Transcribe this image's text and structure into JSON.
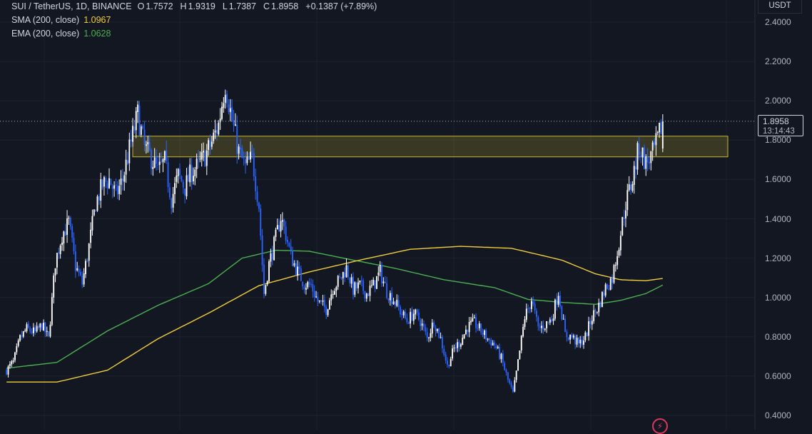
{
  "header": {
    "symbol": "SUI / TetherUS, 1D, BINANCE",
    "open_label": "O",
    "open": "1.7572",
    "high_label": "H",
    "high": "1.9319",
    "low_label": "L",
    "low": "1.7387",
    "close_label": "C",
    "close": "1.8958",
    "change": "+0.1387 (+7.89%)",
    "sma_label": "SMA (200, close)",
    "sma_value": "1.0967",
    "ema_label": "EMA (200, close)",
    "ema_value": "1.0628"
  },
  "price_axis": {
    "currency": "USDT",
    "current_price": "1.8958",
    "countdown": "13:14:43"
  },
  "colors": {
    "background": "#131722",
    "up_candle": "#ffffff",
    "down_candle": "#2962ff",
    "sma": "#f0cd3c",
    "ema": "#4caf50",
    "zone_fill": "rgba(120,110,40,0.38)",
    "zone_border": "#c9b834",
    "grid": "#1e2230"
  },
  "icons": {
    "bottom_right": "lightning-bolt-icon"
  },
  "chart_data": {
    "type": "candlestick",
    "title": "SUI / TetherUS, 1D, BINANCE",
    "ylim": [
      0.4,
      2.4
    ],
    "y_ticks": [
      "2.4000",
      "2.2000",
      "2.0000",
      "1.8000",
      "1.6000",
      "1.4000",
      "1.2000",
      "1.0000",
      "0.8000",
      "0.6000",
      "0.4000"
    ],
    "grid": true,
    "resistance_zone": [
      1.715,
      1.82
    ],
    "current_price": 1.8958,
    "waypoints": [
      [
        0,
        0.63
      ],
      [
        4,
        0.67
      ],
      [
        8,
        0.79
      ],
      [
        12,
        0.84
      ],
      [
        17,
        0.82
      ],
      [
        21,
        0.86
      ],
      [
        25,
        0.79
      ],
      [
        29,
        1.18
      ],
      [
        33,
        1.32
      ],
      [
        37,
        1.38
      ],
      [
        41,
        1.16
      ],
      [
        45,
        1.07
      ],
      [
        49,
        1.26
      ],
      [
        53,
        1.48
      ],
      [
        57,
        1.57
      ],
      [
        61,
        1.6
      ],
      [
        65,
        1.52
      ],
      [
        69,
        1.6
      ],
      [
        74,
        1.79
      ],
      [
        78,
        1.93
      ],
      [
        82,
        1.76
      ],
      [
        86,
        1.71
      ],
      [
        90,
        1.64
      ],
      [
        94,
        1.69
      ],
      [
        98,
        1.5
      ],
      [
        102,
        1.62
      ],
      [
        106,
        1.56
      ],
      [
        110,
        1.64
      ],
      [
        114,
        1.67
      ],
      [
        118,
        1.72
      ],
      [
        122,
        1.79
      ],
      [
        126,
        1.88
      ],
      [
        130,
        2.09
      ],
      [
        134,
        1.9
      ],
      [
        138,
        1.74
      ],
      [
        142,
        1.66
      ],
      [
        146,
        1.71
      ],
      [
        150,
        1.47
      ],
      [
        153,
        1.02
      ],
      [
        156,
        1.17
      ],
      [
        160,
        1.3
      ],
      [
        163,
        1.41
      ],
      [
        166,
        1.32
      ],
      [
        169,
        1.21
      ],
      [
        173,
        1.13
      ],
      [
        177,
        1.07
      ],
      [
        181,
        1.06
      ],
      [
        185,
        0.98
      ],
      [
        190,
        0.94
      ],
      [
        194,
        1.05
      ],
      [
        198,
        1.09
      ],
      [
        202,
        1.15
      ],
      [
        206,
        1.04
      ],
      [
        210,
        1.06
      ],
      [
        214,
        1.02
      ],
      [
        218,
        1.06
      ],
      [
        222,
        1.13
      ],
      [
        226,
        1.03
      ],
      [
        230,
        0.99
      ],
      [
        234,
        0.93
      ],
      [
        238,
        0.88
      ],
      [
        242,
        0.92
      ],
      [
        246,
        0.88
      ],
      [
        250,
        0.79
      ],
      [
        254,
        0.88
      ],
      [
        258,
        0.79
      ],
      [
        262,
        0.65
      ],
      [
        266,
        0.74
      ],
      [
        270,
        0.78
      ],
      [
        274,
        0.85
      ],
      [
        278,
        0.87
      ],
      [
        282,
        0.83
      ],
      [
        286,
        0.79
      ],
      [
        290,
        0.76
      ],
      [
        294,
        0.69
      ],
      [
        298,
        0.58
      ],
      [
        301,
        0.51
      ],
      [
        304,
        0.67
      ],
      [
        308,
        0.9
      ],
      [
        312,
        0.99
      ],
      [
        316,
        0.84
      ],
      [
        320,
        0.86
      ],
      [
        324,
        0.89
      ],
      [
        328,
        1.03
      ],
      [
        332,
        0.81
      ],
      [
        336,
        0.8
      ],
      [
        340,
        0.76
      ],
      [
        344,
        0.8
      ],
      [
        348,
        0.9
      ],
      [
        352,
        0.96
      ],
      [
        356,
        1.05
      ],
      [
        360,
        1.1
      ],
      [
        364,
        1.28
      ],
      [
        368,
        1.48
      ],
      [
        372,
        1.6
      ],
      [
        376,
        1.77
      ],
      [
        380,
        1.68
      ],
      [
        384,
        1.73
      ],
      [
        387,
        1.8
      ],
      [
        390,
        1.8958
      ]
    ],
    "sma_points": [
      [
        0,
        0.57
      ],
      [
        30,
        0.57
      ],
      [
        60,
        0.63
      ],
      [
        90,
        0.79
      ],
      [
        120,
        0.92
      ],
      [
        150,
        1.06
      ],
      [
        180,
        1.13
      ],
      [
        210,
        1.19
      ],
      [
        240,
        1.245
      ],
      [
        270,
        1.26
      ],
      [
        300,
        1.25
      ],
      [
        330,
        1.19
      ],
      [
        350,
        1.12
      ],
      [
        365,
        1.09
      ],
      [
        380,
        1.085
      ],
      [
        390,
        1.0967
      ]
    ],
    "ema_points": [
      [
        0,
        0.64
      ],
      [
        30,
        0.67
      ],
      [
        60,
        0.83
      ],
      [
        90,
        0.96
      ],
      [
        120,
        1.07
      ],
      [
        140,
        1.2
      ],
      [
        160,
        1.24
      ],
      [
        180,
        1.235
      ],
      [
        200,
        1.2
      ],
      [
        230,
        1.15
      ],
      [
        260,
        1.09
      ],
      [
        290,
        1.05
      ],
      [
        310,
        0.99
      ],
      [
        330,
        0.975
      ],
      [
        350,
        0.965
      ],
      [
        365,
        0.985
      ],
      [
        380,
        1.02
      ],
      [
        390,
        1.0628
      ]
    ]
  }
}
